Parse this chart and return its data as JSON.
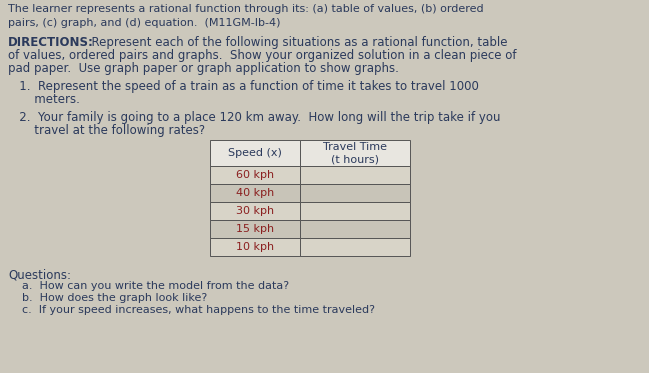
{
  "bg_color": "#ccc8bc",
  "text_color": "#2b3a5c",
  "title_line1": "The learner represents a rational function through its: (a) table of values, (b) ordered",
  "title_line2": "pairs, (c) graph, and (d) equation.  (M11GM-Ib-4)",
  "directions_label": "DIRECTIONS:",
  "directions_line1": "  Represent each of the following situations as a rational function, table",
  "directions_line2": "of values, ordered pairs and graphs.  Show your organized solution in a clean piece of",
  "directions_line3": "pad paper.  Use graph paper or graph application to show graphs.",
  "item1_line1": "   1.  Represent the speed of a train as a function of time it takes to travel 1000",
  "item1_line2": "       meters.",
  "item2_line1": "   2.  Your family is going to a place 120 km away.  How long will the trip take if you",
  "item2_line2": "       travel at the following rates?",
  "table_col1_header": "Speed (x)",
  "table_col2_header": "Travel Time\n(t hours)",
  "table_rows": [
    [
      "60 kph",
      ""
    ],
    [
      "40 kph",
      ""
    ],
    [
      "30 kph",
      ""
    ],
    [
      "15 kph",
      ""
    ],
    [
      "10 kph",
      ""
    ]
  ],
  "questions_label": "Questions:",
  "questions": [
    "a.  How can you write the model from the data?",
    "b.  How does the graph look like?",
    "c.  If your speed increases, what happens to the time traveled?"
  ],
  "table_border_color": "#555555",
  "row_color_odd": "#c8c4b8",
  "row_color_even": "#d8d4c8",
  "speed_text_color": "#8b2020"
}
